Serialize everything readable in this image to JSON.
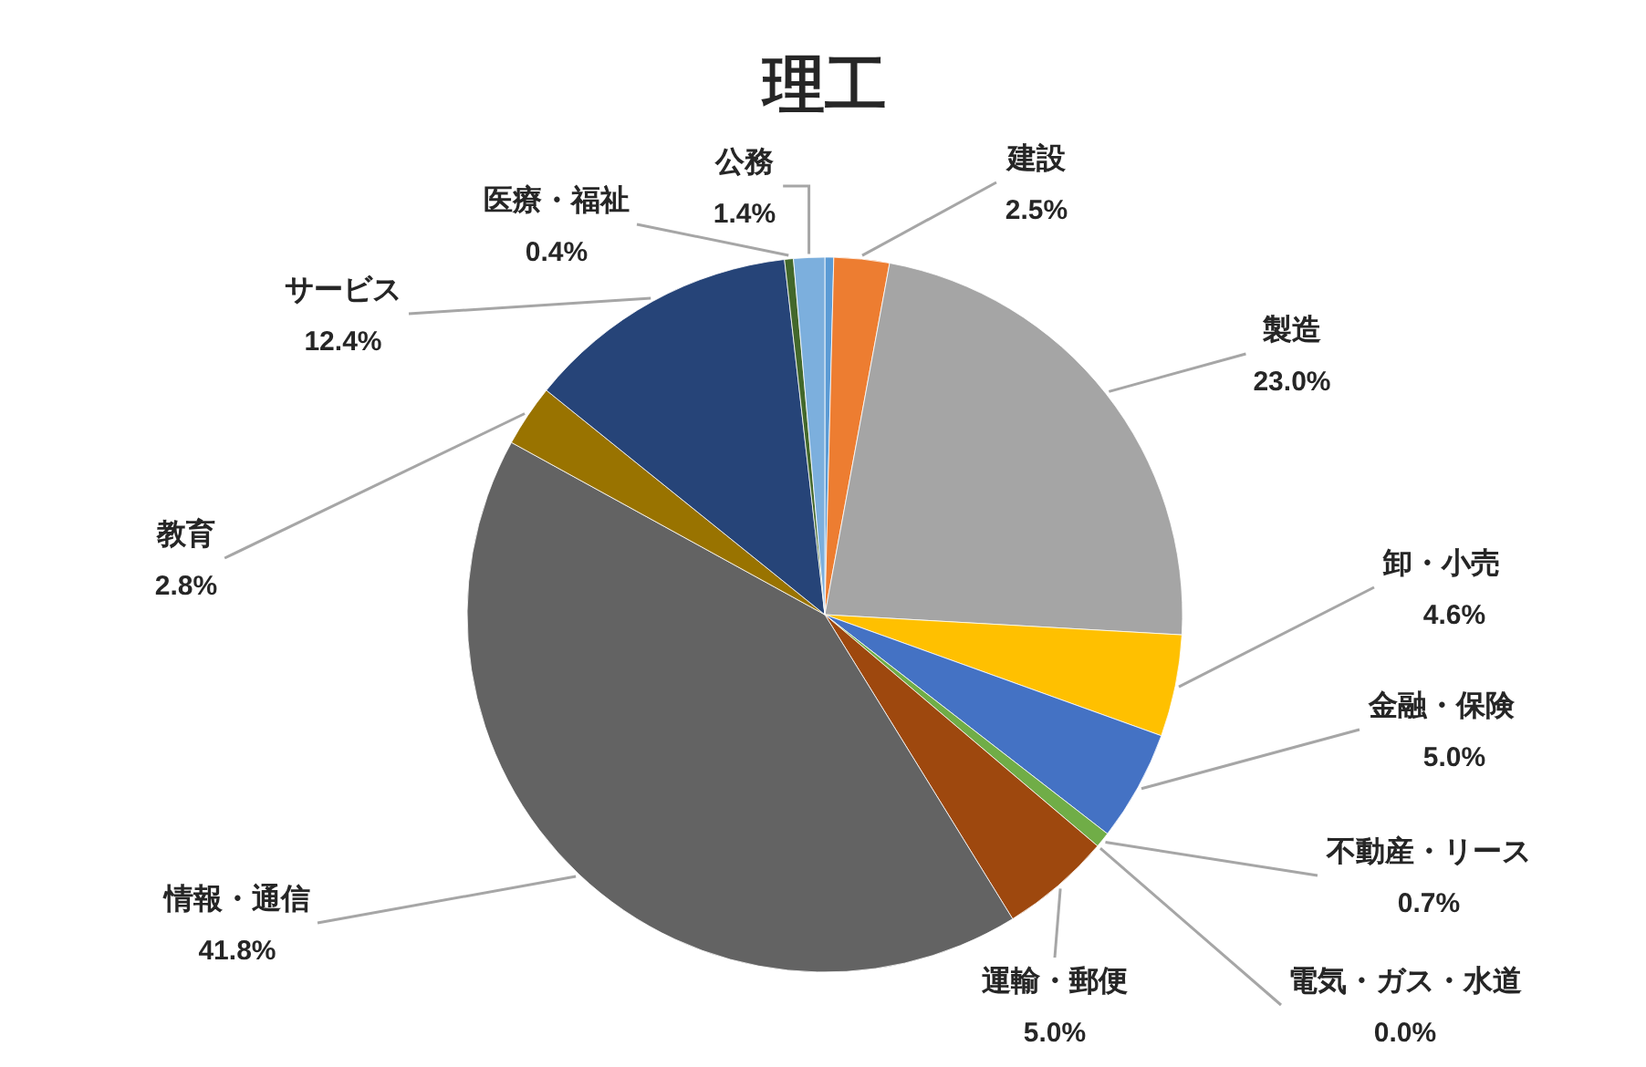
{
  "chart_data": {
    "type": "pie",
    "title": "理工",
    "categories": [
      null,
      "建設",
      "製造",
      "卸・小売",
      "金融・保険",
      "不動産・リース",
      "電気・ガス・水道",
      "運輸・郵便",
      "情報・通信",
      "教育",
      "サービス",
      "医療・福祉",
      "公務"
    ],
    "values": [
      0.4,
      2.5,
      23.0,
      4.6,
      5.0,
      0.7,
      0.0,
      5.0,
      41.8,
      2.8,
      12.4,
      0.4,
      1.4
    ],
    "value_labels": [
      null,
      "2.5%",
      "23.0%",
      "4.6%",
      "5.0%",
      "0.7%",
      "0.0%",
      "5.0%",
      "41.8%",
      "2.8%",
      "12.4%",
      "0.4%",
      "1.4%"
    ],
    "colors": [
      "#5b9bd5",
      "#ed7d31",
      "#a5a5a5",
      "#ffc000",
      "#4472c4",
      "#70ad47",
      "#264478",
      "#9e480e",
      "#636363",
      "#997300",
      "#264478",
      "#43682b",
      "#7cafdd"
    ]
  }
}
